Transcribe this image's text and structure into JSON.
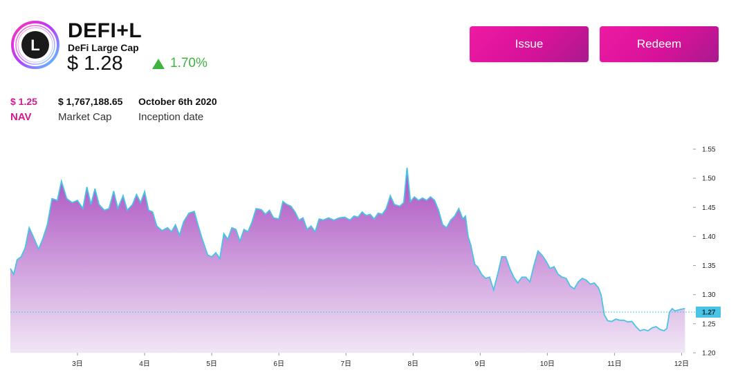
{
  "header": {
    "ticker": "DEFI+L",
    "name": "DeFi Large Cap",
    "price": "$ 1.28",
    "change": "1.70%",
    "logo_letter": "L",
    "logo_icon": "defi-large-cap-logo"
  },
  "actions": {
    "issue_label": "Issue",
    "redeem_label": "Redeem"
  },
  "stats": {
    "nav_value": "$ 1.25",
    "nav_label": "NAV",
    "market_cap_value": "$ 1,767,188.65",
    "market_cap_label": "Market Cap",
    "inception_value": "October 6th 2020",
    "inception_label": "Inception date"
  },
  "colors": {
    "accent": "#d8129a",
    "positive": "#3eb33e",
    "line": "#49c3e6",
    "fill_top": "#a94fc0",
    "fill_bottom": "#f1e6f6"
  },
  "chart_data": {
    "type": "area",
    "ylim": [
      1.2,
      1.56
    ],
    "yticks": [
      "1.55",
      "1.50",
      "1.45",
      "1.40",
      "1.35",
      "1.30",
      "1.25",
      "1.20"
    ],
    "x_ticks": [
      {
        "label": "3日",
        "x": 3.0
      },
      {
        "label": "4日",
        "x": 4.0
      },
      {
        "label": "5日",
        "x": 5.0
      },
      {
        "label": "6日",
        "x": 6.0
      },
      {
        "label": "7日",
        "x": 7.0
      },
      {
        "label": "8日",
        "x": 8.0
      },
      {
        "label": "9日",
        "x": 9.0
      },
      {
        "label": "10日",
        "x": 10.0
      },
      {
        "label": "11日",
        "x": 11.0
      },
      {
        "label": "12日",
        "x": 12.0
      }
    ],
    "xlim": [
      2.0,
      12.15
    ],
    "current_value": 1.27,
    "current_label": "1.27",
    "points": [
      [
        2.0,
        1.345
      ],
      [
        2.05,
        1.335
      ],
      [
        2.1,
        1.36
      ],
      [
        2.16,
        1.365
      ],
      [
        2.22,
        1.38
      ],
      [
        2.28,
        1.415
      ],
      [
        2.34,
        1.4
      ],
      [
        2.42,
        1.378
      ],
      [
        2.48,
        1.395
      ],
      [
        2.55,
        1.42
      ],
      [
        2.62,
        1.465
      ],
      [
        2.7,
        1.462
      ],
      [
        2.76,
        1.495
      ],
      [
        2.84,
        1.465
      ],
      [
        2.92,
        1.458
      ],
      [
        3.0,
        1.462
      ],
      [
        3.08,
        1.448
      ],
      [
        3.14,
        1.485
      ],
      [
        3.2,
        1.455
      ],
      [
        3.26,
        1.482
      ],
      [
        3.32,
        1.455
      ],
      [
        3.4,
        1.445
      ],
      [
        3.47,
        1.448
      ],
      [
        3.54,
        1.478
      ],
      [
        3.6,
        1.448
      ],
      [
        3.68,
        1.47
      ],
      [
        3.74,
        1.445
      ],
      [
        3.82,
        1.455
      ],
      [
        3.88,
        1.472
      ],
      [
        3.94,
        1.458
      ],
      [
        4.0,
        1.477
      ],
      [
        4.06,
        1.445
      ],
      [
        4.12,
        1.442
      ],
      [
        4.18,
        1.418
      ],
      [
        4.26,
        1.41
      ],
      [
        4.34,
        1.415
      ],
      [
        4.4,
        1.408
      ],
      [
        4.46,
        1.42
      ],
      [
        4.52,
        1.402
      ],
      [
        4.58,
        1.425
      ],
      [
        4.66,
        1.44
      ],
      [
        4.74,
        1.443
      ],
      [
        4.8,
        1.418
      ],
      [
        4.86,
        1.395
      ],
      [
        4.94,
        1.368
      ],
      [
        5.0,
        1.365
      ],
      [
        5.06,
        1.372
      ],
      [
        5.12,
        1.362
      ],
      [
        5.18,
        1.405
      ],
      [
        5.24,
        1.395
      ],
      [
        5.3,
        1.415
      ],
      [
        5.36,
        1.412
      ],
      [
        5.42,
        1.392
      ],
      [
        5.48,
        1.412
      ],
      [
        5.54,
        1.408
      ],
      [
        5.6,
        1.425
      ],
      [
        5.66,
        1.448
      ],
      [
        5.74,
        1.446
      ],
      [
        5.8,
        1.438
      ],
      [
        5.86,
        1.445
      ],
      [
        5.92,
        1.432
      ],
      [
        6.0,
        1.43
      ],
      [
        6.06,
        1.46
      ],
      [
        6.12,
        1.455
      ],
      [
        6.18,
        1.452
      ],
      [
        6.24,
        1.442
      ],
      [
        6.3,
        1.428
      ],
      [
        6.36,
        1.432
      ],
      [
        6.42,
        1.412
      ],
      [
        6.48,
        1.418
      ],
      [
        6.54,
        1.408
      ],
      [
        6.6,
        1.43
      ],
      [
        6.66,
        1.428
      ],
      [
        6.74,
        1.432
      ],
      [
        6.82,
        1.428
      ],
      [
        6.9,
        1.432
      ],
      [
        6.98,
        1.433
      ],
      [
        7.06,
        1.428
      ],
      [
        7.12,
        1.435
      ],
      [
        7.18,
        1.433
      ],
      [
        7.24,
        1.442
      ],
      [
        7.3,
        1.436
      ],
      [
        7.36,
        1.438
      ],
      [
        7.42,
        1.43
      ],
      [
        7.48,
        1.44
      ],
      [
        7.54,
        1.438
      ],
      [
        7.6,
        1.448
      ],
      [
        7.66,
        1.47
      ],
      [
        7.72,
        1.455
      ],
      [
        7.8,
        1.452
      ],
      [
        7.86,
        1.458
      ],
      [
        7.91,
        1.518
      ],
      [
        7.96,
        1.46
      ],
      [
        8.02,
        1.468
      ],
      [
        8.08,
        1.462
      ],
      [
        8.14,
        1.466
      ],
      [
        8.2,
        1.462
      ],
      [
        8.26,
        1.468
      ],
      [
        8.32,
        1.462
      ],
      [
        8.38,
        1.445
      ],
      [
        8.44,
        1.42
      ],
      [
        8.5,
        1.415
      ],
      [
        8.56,
        1.428
      ],
      [
        8.62,
        1.435
      ],
      [
        8.68,
        1.448
      ],
      [
        8.74,
        1.43
      ],
      [
        8.78,
        1.435
      ],
      [
        8.82,
        1.4
      ],
      [
        8.86,
        1.385
      ],
      [
        8.92,
        1.352
      ],
      [
        8.96,
        1.348
      ],
      [
        9.02,
        1.335
      ],
      [
        9.08,
        1.328
      ],
      [
        9.14,
        1.33
      ],
      [
        9.2,
        1.308
      ],
      [
        9.26,
        1.335
      ],
      [
        9.32,
        1.365
      ],
      [
        9.38,
        1.365
      ],
      [
        9.44,
        1.345
      ],
      [
        9.5,
        1.33
      ],
      [
        9.56,
        1.32
      ],
      [
        9.62,
        1.33
      ],
      [
        9.68,
        1.33
      ],
      [
        9.74,
        1.322
      ],
      [
        9.8,
        1.35
      ],
      [
        9.86,
        1.375
      ],
      [
        9.92,
        1.368
      ],
      [
        9.98,
        1.358
      ],
      [
        10.04,
        1.345
      ],
      [
        10.1,
        1.348
      ],
      [
        10.16,
        1.335
      ],
      [
        10.22,
        1.33
      ],
      [
        10.28,
        1.328
      ],
      [
        10.34,
        1.315
      ],
      [
        10.4,
        1.31
      ],
      [
        10.46,
        1.322
      ],
      [
        10.52,
        1.328
      ],
      [
        10.58,
        1.325
      ],
      [
        10.64,
        1.318
      ],
      [
        10.7,
        1.32
      ],
      [
        10.76,
        1.312
      ],
      [
        10.8,
        1.3
      ],
      [
        10.85,
        1.265
      ],
      [
        10.9,
        1.255
      ],
      [
        10.96,
        1.254
      ],
      [
        11.02,
        1.258
      ],
      [
        11.08,
        1.256
      ],
      [
        11.14,
        1.256
      ],
      [
        11.2,
        1.253
      ],
      [
        11.26,
        1.254
      ],
      [
        11.32,
        1.245
      ],
      [
        11.38,
        1.238
      ],
      [
        11.44,
        1.24
      ],
      [
        11.5,
        1.238
      ],
      [
        11.56,
        1.243
      ],
      [
        11.62,
        1.245
      ],
      [
        11.68,
        1.24
      ],
      [
        11.74,
        1.238
      ],
      [
        11.78,
        1.242
      ],
      [
        11.82,
        1.27
      ],
      [
        11.86,
        1.276
      ],
      [
        11.9,
        1.272
      ],
      [
        12.0,
        1.275
      ],
      [
        12.05,
        1.276
      ]
    ]
  }
}
